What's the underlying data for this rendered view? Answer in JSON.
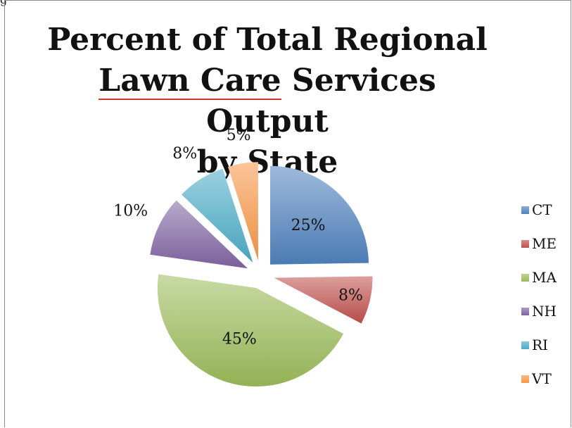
{
  "page_fragment": "g",
  "chart_data": {
    "type": "pie",
    "title": "Percent of Total Regional Lawn Care Services Output by State",
    "title_lines": [
      "Percent of Total Regional",
      "Lawn Care Services Output",
      "by State"
    ],
    "title_underlined_phrase": "Lawn Care",
    "categories": [
      "CT",
      "ME",
      "MA",
      "NH",
      "RI",
      "VT"
    ],
    "values": [
      25,
      8,
      45,
      10,
      8,
      5
    ],
    "data_labels": [
      "25%",
      "8%",
      "45%",
      "10%",
      "8%",
      "5%"
    ],
    "colors": [
      "#4f81bd",
      "#c0504d",
      "#9bbb59",
      "#8064a2",
      "#4bacc6",
      "#f79646"
    ],
    "legend": {
      "position": "right",
      "entries": [
        "CT",
        "ME",
        "MA",
        "NH",
        "RI",
        "VT"
      ]
    },
    "exploded": true
  }
}
